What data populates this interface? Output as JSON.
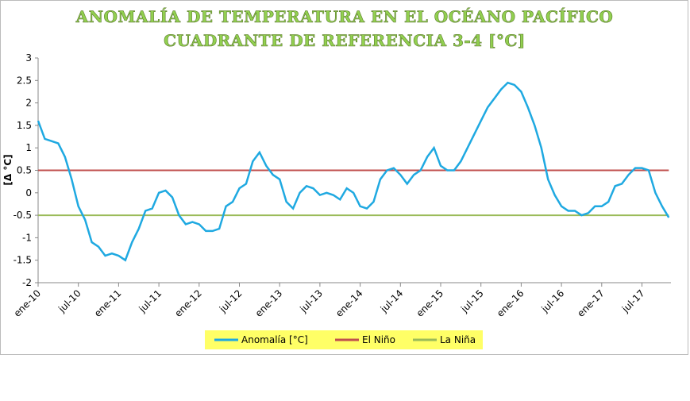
{
  "chart_data": {
    "type": "line",
    "title": "ANOMALÍA DE TEMPERATURA EN EL OCÉANO PACÍFICO",
    "subtitle": "CUADRANTE DE REFERENCIA 3-4 [°C]",
    "y_label": "[Δ °C]",
    "categories": [
      "ene-10",
      null,
      null,
      null,
      null,
      null,
      "jul-10",
      null,
      null,
      null,
      null,
      null,
      "ene-11",
      null,
      null,
      null,
      null,
      null,
      "jul-11",
      null,
      null,
      null,
      null,
      null,
      "ene-12",
      null,
      null,
      null,
      null,
      null,
      "jul-12",
      null,
      null,
      null,
      null,
      null,
      "ene-13",
      null,
      null,
      null,
      null,
      null,
      "jul-13",
      null,
      null,
      null,
      null,
      null,
      "ene-14",
      null,
      null,
      null,
      null,
      null,
      "jul-14",
      null,
      null,
      null,
      null,
      null,
      "ene-15",
      null,
      null,
      null,
      null,
      null,
      "jul-15",
      null,
      null,
      null,
      null,
      null,
      "ene-16",
      null,
      null,
      null,
      null,
      null,
      "jul-16",
      null,
      null,
      null,
      null,
      null,
      "ene-17",
      null,
      null,
      null,
      null,
      null,
      "jul-17",
      null,
      null,
      null,
      null
    ],
    "series": [
      {
        "name": "Anomalía [°C]",
        "color": "#1fa9e1",
        "values": [
          1.6,
          1.2,
          1.15,
          1.1,
          0.8,
          0.3,
          -0.3,
          -0.6,
          -1.1,
          -1.2,
          -1.4,
          -1.35,
          -1.4,
          -1.5,
          -1.1,
          -0.8,
          -0.4,
          -0.35,
          0.0,
          0.05,
          -0.1,
          -0.5,
          -0.7,
          -0.65,
          -0.7,
          -0.85,
          -0.85,
          -0.8,
          -0.3,
          -0.2,
          0.1,
          0.2,
          0.7,
          0.9,
          0.6,
          0.4,
          0.3,
          -0.2,
          -0.35,
          0.0,
          0.15,
          0.1,
          -0.05,
          0.0,
          -0.05,
          -0.15,
          0.1,
          0.0,
          -0.3,
          -0.35,
          -0.2,
          0.3,
          0.5,
          0.55,
          0.4,
          0.2,
          0.4,
          0.5,
          0.8,
          1.0,
          0.6,
          0.5,
          0.5,
          0.7,
          1.0,
          1.3,
          1.6,
          1.9,
          2.1,
          2.3,
          2.45,
          2.4,
          2.25,
          1.9,
          1.5,
          1.0,
          0.3,
          -0.05,
          -0.3,
          -0.4,
          -0.4,
          -0.5,
          -0.45,
          -0.3,
          -0.3,
          -0.2,
          0.15,
          0.2,
          0.4,
          0.55,
          0.55,
          0.5,
          0.0,
          -0.3,
          -0.55
        ]
      },
      {
        "name": "El Niño",
        "color": "#c0504d",
        "values": [
          0.5,
          0.5,
          0.5,
          0.5,
          0.5,
          0.5,
          0.5,
          0.5,
          0.5,
          0.5,
          0.5,
          0.5,
          0.5,
          0.5,
          0.5,
          0.5,
          0.5,
          0.5,
          0.5,
          0.5,
          0.5,
          0.5,
          0.5,
          0.5,
          0.5,
          0.5,
          0.5,
          0.5,
          0.5,
          0.5,
          0.5,
          0.5,
          0.5,
          0.5,
          0.5,
          0.5,
          0.5,
          0.5,
          0.5,
          0.5,
          0.5,
          0.5,
          0.5,
          0.5,
          0.5,
          0.5,
          0.5,
          0.5,
          0.5,
          0.5,
          0.5,
          0.5,
          0.5,
          0.5,
          0.5,
          0.5,
          0.5,
          0.5,
          0.5,
          0.5,
          0.5,
          0.5,
          0.5,
          0.5,
          0.5,
          0.5,
          0.5,
          0.5,
          0.5,
          0.5,
          0.5,
          0.5,
          0.5,
          0.5,
          0.5,
          0.5,
          0.5,
          0.5,
          0.5,
          0.5,
          0.5,
          0.5,
          0.5,
          0.5,
          0.5,
          0.5,
          0.5,
          0.5,
          0.5,
          0.5,
          0.5,
          0.5,
          0.5,
          0.5,
          0.5
        ]
      },
      {
        "name": "La Niña",
        "color": "#9bbb59",
        "values": [
          -0.5,
          -0.5,
          -0.5,
          -0.5,
          -0.5,
          -0.5,
          -0.5,
          -0.5,
          -0.5,
          -0.5,
          -0.5,
          -0.5,
          -0.5,
          -0.5,
          -0.5,
          -0.5,
          -0.5,
          -0.5,
          -0.5,
          -0.5,
          -0.5,
          -0.5,
          -0.5,
          -0.5,
          -0.5,
          -0.5,
          -0.5,
          -0.5,
          -0.5,
          -0.5,
          -0.5,
          -0.5,
          -0.5,
          -0.5,
          -0.5,
          -0.5,
          -0.5,
          -0.5,
          -0.5,
          -0.5,
          -0.5,
          -0.5,
          -0.5,
          -0.5,
          -0.5,
          -0.5,
          -0.5,
          -0.5,
          -0.5,
          -0.5,
          -0.5,
          -0.5,
          -0.5,
          -0.5,
          -0.5,
          -0.5,
          -0.5,
          -0.5,
          -0.5,
          -0.5,
          -0.5,
          -0.5,
          -0.5,
          -0.5,
          -0.5,
          -0.5,
          -0.5,
          -0.5,
          -0.5,
          -0.5,
          -0.5,
          -0.5,
          -0.5,
          -0.5,
          -0.5,
          -0.5,
          -0.5,
          -0.5,
          -0.5,
          -0.5,
          -0.5,
          -0.5,
          -0.5,
          -0.5,
          -0.5,
          -0.5,
          -0.5,
          -0.5,
          -0.5,
          -0.5,
          -0.5,
          -0.5,
          -0.5,
          -0.5,
          -0.5
        ]
      }
    ],
    "ylim": [
      -2,
      3
    ],
    "yticks": [
      -2,
      -1.5,
      -1,
      -0.5,
      0,
      0.5,
      1,
      1.5,
      2,
      2.5,
      3
    ],
    "grid": false,
    "legend": "bottom",
    "legend_background": "#ffff66"
  }
}
